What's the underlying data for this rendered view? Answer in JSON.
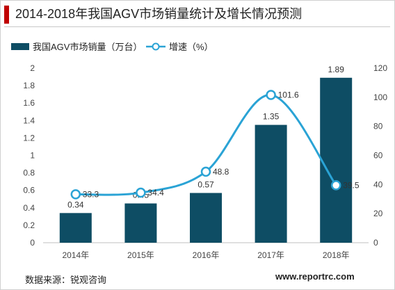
{
  "title": "2014-2018年我国AGV市场销量统计及增长情况预测",
  "source_label": "数据来源：锐观咨询",
  "website": "www.reportrc.com",
  "colors": {
    "bar": "#0e4d64",
    "line": "#2aa3d5",
    "title_accent": "#c00000"
  },
  "chart_data": {
    "type": "bar",
    "categories": [
      "2014年",
      "2015年",
      "2016年",
      "2017年",
      "2018年"
    ],
    "series": [
      {
        "name": "我国AGV市场销量（万台）",
        "type": "bar",
        "axis": "left",
        "values": [
          0.34,
          0.45,
          0.57,
          1.35,
          1.89
        ],
        "labels": [
          "0.34",
          "0.45",
          "0.57",
          "1.35",
          "1.89"
        ]
      },
      {
        "name": "增速（%）",
        "type": "line",
        "axis": "right",
        "values": [
          33.3,
          34.4,
          48.8,
          101.6,
          39.5
        ],
        "labels": [
          "33.3",
          "34.4",
          "48.8",
          "101.6",
          "39.5"
        ]
      }
    ],
    "y_left": {
      "min": 0,
      "max": 2,
      "ticks": [
        "0",
        "0.2",
        "0.4",
        "0.6",
        "0.8",
        "1",
        "1.2",
        "1.4",
        "1.6",
        "1.8",
        "2"
      ]
    },
    "y_right": {
      "min": 0,
      "max": 120,
      "ticks": [
        "0",
        "20",
        "40",
        "60",
        "80",
        "100",
        "120"
      ]
    },
    "legend_position": "top-left",
    "grid": false
  }
}
